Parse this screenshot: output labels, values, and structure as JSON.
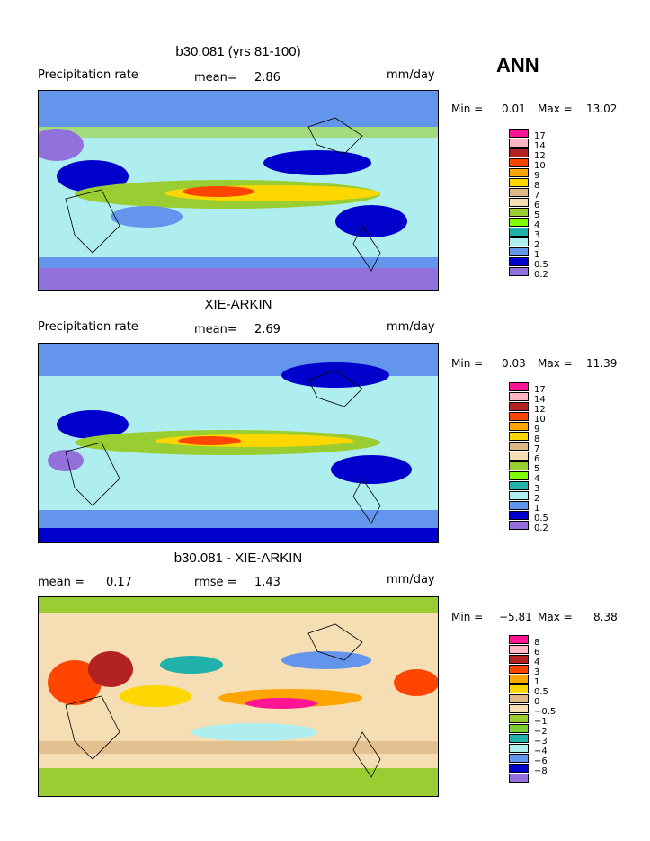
{
  "season": "ANN",
  "panels": [
    {
      "title": "b30.081 (yrs 81-100)",
      "left_label": "Precipitation rate",
      "mid_label": "mean=",
      "mid_value": "2.86",
      "right_label": "mm/day",
      "min_label": "Min =",
      "min_value": "0.01",
      "max_label": "Max =",
      "max_value": "13.02",
      "legend": [
        "17",
        "14",
        "12",
        "10",
        "9",
        "8",
        "7",
        "6",
        "5",
        "4",
        "3",
        "2",
        "1",
        "0.5",
        "0.2"
      ]
    },
    {
      "title": "XIE-ARKIN",
      "left_label": "Precipitation rate",
      "mid_label": "mean=",
      "mid_value": "2.69",
      "right_label": "mm/day",
      "min_label": "Min =",
      "min_value": "0.03",
      "max_label": "Max =",
      "max_value": "11.39",
      "legend": [
        "17",
        "14",
        "12",
        "10",
        "9",
        "8",
        "7",
        "6",
        "5",
        "4",
        "3",
        "2",
        "1",
        "0.5",
        "0.2"
      ]
    },
    {
      "title": "b30.081 - XIE-ARKIN",
      "left_label": "mean =",
      "left_value": "0.17",
      "mid_label": "rmse =",
      "mid_value": "1.43",
      "right_label": "mm/day",
      "min_label": "Min =",
      "min_value": "−5.81",
      "max_label": "Max =",
      "max_value": "8.38",
      "legend": [
        "8",
        "6",
        "4",
        "3",
        "1",
        "0.5",
        "0",
        "−0.5",
        "−1",
        "−2",
        "−3",
        "−4",
        "−6",
        "−8"
      ]
    }
  ],
  "colors": {
    "precip_scale": [
      "#ff1493",
      "#ffb6c1",
      "#b22222",
      "#ff4500",
      "#ffa500",
      "#ffd700",
      "#deb887",
      "#f5deb3",
      "#9acd32",
      "#7fff00",
      "#20b2aa",
      "#afeeee",
      "#6495ed",
      "#0000cd",
      "#9370db"
    ],
    "diff_scale": [
      "#ff1493",
      "#ffb6c1",
      "#b22222",
      "#ff4500",
      "#ffa500",
      "#ffd700",
      "#deb887",
      "#f5deb3",
      "#9acd32",
      "#7ccd32",
      "#20b2aa",
      "#afeeee",
      "#6495ed",
      "#0000cd",
      "#9370db"
    ]
  }
}
